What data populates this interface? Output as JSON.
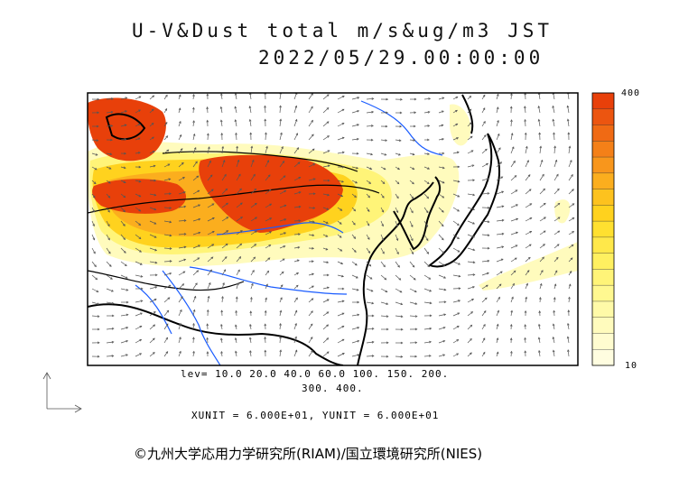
{
  "title": {
    "line1": "U-V&Dust total m/s&ug/m3 JST",
    "line2": "2022/05/29.00:00:00"
  },
  "contour_levels": {
    "line1": "lev= 10.0 20.0 40.0 60.0 100. 150. 200.",
    "line2": "300. 400."
  },
  "units_line": "XUNIT = 6.000E+01, YUNIT = 6.000E+01",
  "colorbar": {
    "max_label": "400",
    "min_label": "10",
    "colors": [
      "#e8400a",
      "#ec5510",
      "#f06a14",
      "#f48018",
      "#f8961c",
      "#fbae1e",
      "#fdc21e",
      "#ffd21e",
      "#ffe030",
      "#ffe84a",
      "#fff060",
      "#fff478",
      "#fff890",
      "#fffaa8",
      "#fffbbd",
      "#fffcd0",
      "#fffde0"
    ]
  },
  "map": {
    "legend_field": "Dust total (ug/m3)",
    "colors": {
      "high": "#e8400a",
      "medium": "#ffd21e",
      "low": "#fff8a8",
      "coast": "#000000",
      "river": "#1a5cff"
    }
  },
  "copyright": "©九州大学応用力学研究所(RIAM)/国立環境研究所(NIES)"
}
